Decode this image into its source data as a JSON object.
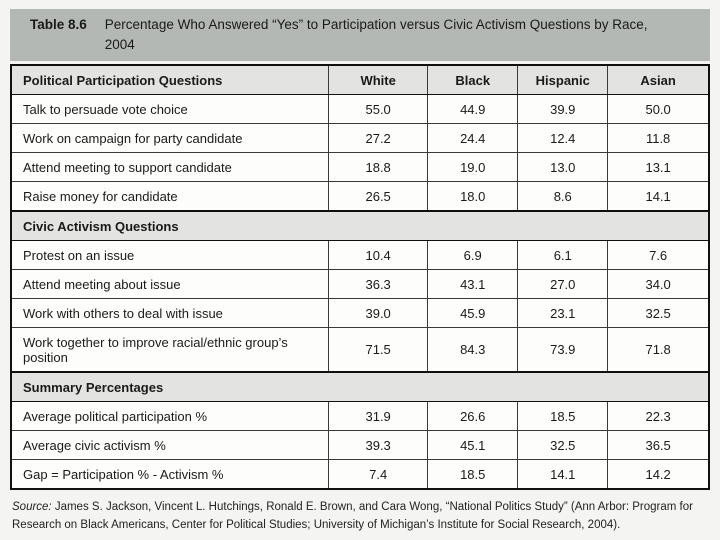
{
  "page": {
    "title_label": "Table 8.6",
    "title_text": "Percentage Who Answered “Yes” to Participation versus Civic Activism Questions by Race, 2004",
    "source_label": "Source:",
    "source_text": " James S. Jackson, Vincent L. Hutchings, Ronald E. Brown, and Cara Wong, “National Politics Study” (Ann Arbor: Program for Research on Black Americans, Center for Political Studies; University of Michigan’s Institute for Social Research, 2004)."
  },
  "colors": {
    "title_bar_bg": "#b4b8b4",
    "header_bg": "#e3e3e1",
    "section_bg": "#e3e3e1",
    "table_border": "#101010",
    "page_bg": "#f4f4f2",
    "text": "#1a1a1a"
  },
  "table": {
    "header": {
      "label": "Political Participation Questions",
      "columns": [
        "White",
        "Black",
        "Hispanic",
        "Asian"
      ]
    },
    "sections": [
      {
        "heading": null,
        "rows": [
          {
            "label": "Talk to persuade vote choice",
            "values": [
              "55.0",
              "44.9",
              "39.9",
              "50.0"
            ]
          },
          {
            "label": "Work on campaign for party candidate",
            "values": [
              "27.2",
              "24.4",
              "12.4",
              "11.8"
            ]
          },
          {
            "label": "Attend meeting to support candidate",
            "values": [
              "18.8",
              "19.0",
              "13.0",
              "13.1"
            ]
          },
          {
            "label": "Raise money for candidate",
            "values": [
              "26.5",
              "18.0",
              "8.6",
              "14.1"
            ]
          }
        ]
      },
      {
        "heading": "Civic Activism Questions",
        "rows": [
          {
            "label": "Protest on an issue",
            "values": [
              "10.4",
              "6.9",
              "6.1",
              "7.6"
            ]
          },
          {
            "label": "Attend meeting about issue",
            "values": [
              "36.3",
              "43.1",
              "27.0",
              "34.0"
            ]
          },
          {
            "label": "Work with others to deal with issue",
            "values": [
              "39.0",
              "45.9",
              "23.1",
              "32.5"
            ]
          },
          {
            "label": "Work together to improve racial/ethnic group’s position",
            "values": [
              "71.5",
              "84.3",
              "73.9",
              "71.8"
            ]
          }
        ]
      },
      {
        "heading": "Summary Percentages",
        "rows": [
          {
            "label": "Average political participation %",
            "values": [
              "31.9",
              "26.6",
              "18.5",
              "22.3"
            ]
          },
          {
            "label": "Average civic activism %",
            "values": [
              "39.3",
              "45.1",
              "32.5",
              "36.5"
            ]
          },
          {
            "label": "Gap = Participation % - Activism %",
            "values": [
              "7.4",
              "18.5",
              "14.1",
              "14.2"
            ]
          }
        ]
      }
    ]
  },
  "chart_data": {
    "type": "table",
    "title": "Table 8.6  Percentage Who Answered “Yes” to Participation versus Civic Activism Questions by Race, 2004",
    "columns": [
      "White",
      "Black",
      "Hispanic",
      "Asian"
    ],
    "rows": [
      {
        "category": "Political Participation Questions",
        "label": "Talk to persuade vote choice",
        "values": [
          55.0,
          44.9,
          39.9,
          50.0
        ]
      },
      {
        "category": "Political Participation Questions",
        "label": "Work on campaign for party candidate",
        "values": [
          27.2,
          24.4,
          12.4,
          11.8
        ]
      },
      {
        "category": "Political Participation Questions",
        "label": "Attend meeting to support candidate",
        "values": [
          18.8,
          19.0,
          13.0,
          13.1
        ]
      },
      {
        "category": "Political Participation Questions",
        "label": "Raise money for candidate",
        "values": [
          26.5,
          18.0,
          8.6,
          14.1
        ]
      },
      {
        "category": "Civic Activism Questions",
        "label": "Protest on an issue",
        "values": [
          10.4,
          6.9,
          6.1,
          7.6
        ]
      },
      {
        "category": "Civic Activism Questions",
        "label": "Attend meeting about issue",
        "values": [
          36.3,
          43.1,
          27.0,
          34.0
        ]
      },
      {
        "category": "Civic Activism Questions",
        "label": "Work with others to deal with issue",
        "values": [
          39.0,
          45.9,
          23.1,
          32.5
        ]
      },
      {
        "category": "Civic Activism Questions",
        "label": "Work together to improve racial/ethnic group’s position",
        "values": [
          71.5,
          84.3,
          73.9,
          71.8
        ]
      },
      {
        "category": "Summary Percentages",
        "label": "Average political participation %",
        "values": [
          31.9,
          26.6,
          18.5,
          22.3
        ]
      },
      {
        "category": "Summary Percentages",
        "label": "Average civic activism %",
        "values": [
          39.3,
          45.1,
          32.5,
          36.5
        ]
      },
      {
        "category": "Summary Percentages",
        "label": "Gap = Participation % - Activism %",
        "values": [
          7.4,
          18.5,
          14.1,
          14.2
        ]
      }
    ]
  }
}
